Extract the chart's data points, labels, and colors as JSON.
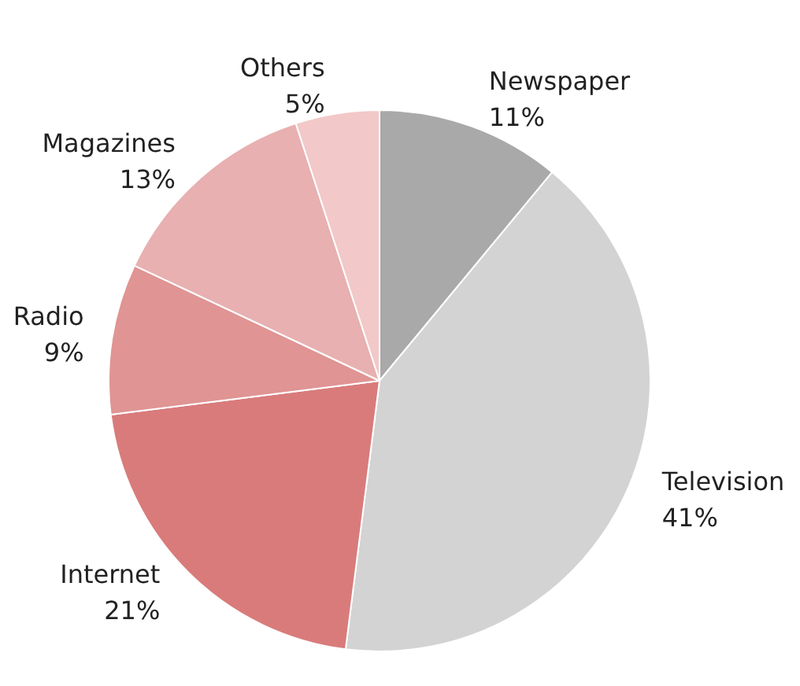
{
  "chart_data": {
    "type": "pie",
    "categories": [
      "Newspaper",
      "Television",
      "Internet",
      "Radio",
      "Magazines",
      "Others"
    ],
    "values": [
      11,
      41,
      21,
      9,
      13,
      5
    ],
    "colors": [
      "#a9a9a9",
      "#d3d3d3",
      "#d97b7b",
      "#e09494",
      "#e8b0b0",
      "#f2c8c8"
    ],
    "value_labels": [
      "11%",
      "41%",
      "21%",
      "9%",
      "13%",
      "5%"
    ],
    "legend": false
  }
}
